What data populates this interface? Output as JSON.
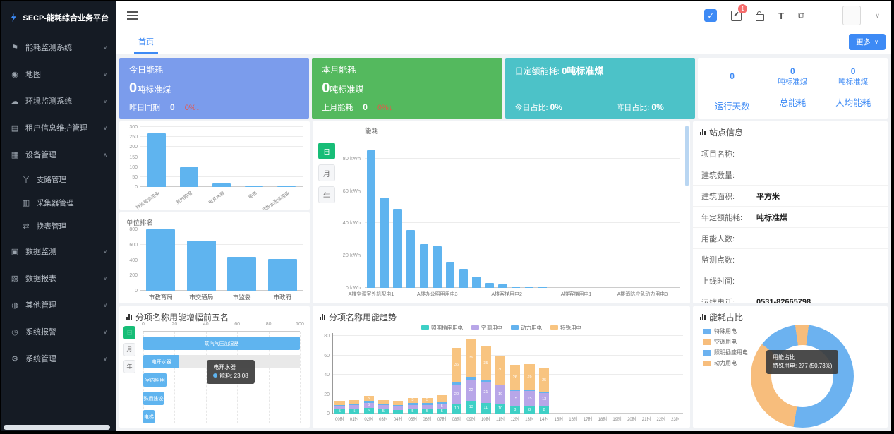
{
  "app": {
    "title": "SECP-能耗综合业务平台"
  },
  "icons": {
    "chevron_down": "∨",
    "chevron_up": "∧",
    "check": "✓",
    "theme": "T",
    "images": "⧉"
  },
  "header": {
    "badge_count": "1"
  },
  "tabs": {
    "home": "首页",
    "more": "更多"
  },
  "sidebar": {
    "items": [
      {
        "label": "能耗监测系统",
        "icon": "flag-icon",
        "chevron": "down"
      },
      {
        "label": "地图",
        "icon": "map-pin-icon",
        "chevron": "down"
      },
      {
        "label": "环境监测系统",
        "icon": "cloud-icon",
        "chevron": "down"
      },
      {
        "label": "租户信息维护管理",
        "icon": "tenant-icon",
        "chevron": "down"
      },
      {
        "label": "设备管理",
        "icon": "device-icon",
        "chevron": "up",
        "children": [
          {
            "label": "支路管理",
            "icon": "branch-icon"
          },
          {
            "label": "采集器管理",
            "icon": "collector-icon"
          },
          {
            "label": "换表管理",
            "icon": "meter-swap-icon"
          }
        ]
      },
      {
        "label": "数据监测",
        "icon": "data-monitor-icon",
        "chevron": "down"
      },
      {
        "label": "数据报表",
        "icon": "report-icon",
        "chevron": "down"
      },
      {
        "label": "其他管理",
        "icon": "other-icon",
        "chevron": "down"
      },
      {
        "label": "系统报警",
        "icon": "alarm-icon",
        "chevron": "down"
      },
      {
        "label": "系统管理",
        "icon": "settings-icon",
        "chevron": "down"
      }
    ]
  },
  "cards": {
    "today": {
      "title": "今日能耗",
      "value": "0",
      "unit": "吨标准煤",
      "compare_label": "昨日同期",
      "compare_value": "0",
      "delta": "0%↓"
    },
    "month": {
      "title": "本月能耗",
      "value": "0",
      "unit": "吨标准煤",
      "compare_label": "上月能耗",
      "compare_value": "0",
      "delta": "0%↓"
    },
    "quota": {
      "title": "日定额能耗:",
      "value": "0吨标准煤",
      "today_label": "今日占比:",
      "today_value": "0%",
      "yesterday_label": "昨日占比:",
      "yesterday_value": "0%"
    },
    "stats": [
      {
        "value": "0",
        "unit": "",
        "label": "运行天数"
      },
      {
        "value": "0",
        "unit": "吨标准煤",
        "label": "总能耗"
      },
      {
        "value": "0",
        "unit": "吨标准煤",
        "label": "人均能耗"
      }
    ]
  },
  "site_info": {
    "title": "站点信息",
    "rows": [
      {
        "label": "项目名称:",
        "value": ""
      },
      {
        "label": "建筑数量:",
        "value": ""
      },
      {
        "label": "建筑面积:",
        "value": "平方米"
      },
      {
        "label": "年定额能耗:",
        "value": "吨标准煤"
      },
      {
        "label": "用能人数:",
        "value": ""
      },
      {
        "label": "监测点数:",
        "value": ""
      },
      {
        "label": "上线时间:",
        "value": ""
      },
      {
        "label": "运维电话:",
        "value": "0531-82665798"
      }
    ]
  },
  "chart_data": [
    {
      "id": "subentry-rank",
      "type": "bar",
      "title": "",
      "categories": [
        "特殊用途设备",
        "室内照明",
        "电开水器",
        "电梯",
        "生活热水洗涤设备"
      ],
      "values": [
        270,
        98,
        17,
        5,
        3
      ],
      "ylim": [
        0,
        300
      ],
      "yticks": [
        0,
        50,
        100,
        150,
        200,
        250,
        300
      ],
      "bar_color": "#5fb4ef"
    },
    {
      "id": "unit-rank",
      "type": "bar",
      "title": "单位排名",
      "categories": [
        "市教育局",
        "市交通局",
        "市监委",
        "市政府"
      ],
      "values": [
        800,
        650,
        440,
        415
      ],
      "ylim": [
        0,
        800
      ],
      "yticks": [
        0,
        200,
        400,
        600,
        800
      ],
      "bar_color": "#5fb4ef"
    },
    {
      "id": "branch-energy",
      "type": "bar",
      "title": "能耗",
      "ylabel_unit": "kWh",
      "period_buttons": [
        "日",
        "月",
        "年"
      ],
      "active_period": "日",
      "values": [
        85,
        56,
        49,
        36,
        27,
        26,
        16,
        12,
        7,
        3,
        2,
        1,
        1,
        1,
        0,
        0,
        0,
        0,
        0,
        0,
        0,
        0,
        0,
        0
      ],
      "x_axis_labels": [
        "A楼空调室外机配电1",
        "A楼办公照明用电3",
        "A楼客梯用电2",
        "A楼客梯用电1",
        "A楼消防应急动力用电3"
      ],
      "ylim": [
        0,
        90
      ],
      "yticks": [
        0,
        20,
        40,
        60,
        80
      ],
      "bar_color": "#5fb4ef"
    },
    {
      "id": "growth-top5",
      "type": "bar",
      "title": "分项名称用能增幅前五名",
      "period_buttons": [
        "日",
        "月",
        "年"
      ],
      "active_period": "日",
      "items": [
        {
          "label": "蒸汽气压加湿器",
          "value": 100,
          "highlight": false
        },
        {
          "label": "电开水器",
          "value": 23.08,
          "highlight": true
        },
        {
          "label": "室内照明",
          "value": 15,
          "highlight": false
        },
        {
          "label": "特殊用途设备",
          "value": 13,
          "highlight": false
        },
        {
          "label": "电梯",
          "value": 4,
          "highlight": false
        }
      ],
      "xlim": [
        0,
        100
      ],
      "xticks": [
        0,
        20,
        40,
        60,
        80,
        100
      ],
      "tooltip": {
        "title": "电开水器",
        "line": "能耗: 23.08"
      },
      "bar_color": "#5fb4ef"
    },
    {
      "id": "subentry-trend",
      "type": "bar",
      "title": "分项名称用能趋势",
      "categories": [
        "00时",
        "01时",
        "02时",
        "03时",
        "04时",
        "05时",
        "06时",
        "07时",
        "08时",
        "09时",
        "10时",
        "11时",
        "12时",
        "13时",
        "14时",
        "15时",
        "16时",
        "17时",
        "18时",
        "19时",
        "20时",
        "21时",
        "22时",
        "23时"
      ],
      "series": [
        {
          "name": "照明插座用电",
          "color": "#3ed0c6",
          "values": [
            5,
            5,
            6,
            5,
            4,
            5,
            5,
            5,
            10,
            13,
            11,
            10,
            8,
            8,
            8,
            0,
            0,
            0,
            0,
            0,
            0,
            0,
            0,
            0
          ]
        },
        {
          "name": "空调用电",
          "color": "#b8a6e8",
          "values": [
            3,
            4,
            5,
            4,
            4,
            4,
            4,
            5,
            20,
            22,
            21,
            19,
            15,
            15,
            13,
            0,
            0,
            0,
            0,
            0,
            0,
            0,
            0,
            0
          ]
        },
        {
          "name": "动力用电",
          "color": "#63b2ee",
          "values": [
            1,
            1,
            2,
            1,
            1,
            2,
            2,
            2,
            2,
            3,
            2,
            1,
            1,
            2,
            1,
            0,
            0,
            0,
            0,
            0,
            0,
            0,
            0,
            0
          ]
        },
        {
          "name": "特殊用电",
          "color": "#f8c480",
          "values": [
            4,
            4,
            5,
            4,
            4,
            5,
            5,
            7,
            36,
            39,
            35,
            30,
            26,
            26,
            25,
            0,
            0,
            0,
            0,
            0,
            0,
            0,
            0,
            0
          ]
        }
      ],
      "ylim": [
        0,
        80
      ],
      "yticks": [
        0,
        20,
        40,
        60,
        80
      ]
    },
    {
      "id": "energy-share",
      "type": "pie",
      "title": "能耗占比",
      "slices": [
        {
          "name": "特殊用电",
          "value": 277,
          "pct": "50.73%",
          "color": "#6cb2f0"
        },
        {
          "name": "空调用电",
          "value": 180,
          "pct": "32.97%",
          "color": "#f7bd7c"
        },
        {
          "name": "照明插座用电",
          "value": 66,
          "pct": "12.09%",
          "color": "#6cb2f0"
        },
        {
          "name": "动力用电",
          "value": 23,
          "pct": "4.21%",
          "color": "#f7bd7c"
        }
      ],
      "visual_order": [
        3,
        0,
        1,
        2
      ],
      "tooltip": {
        "title": "用能占比",
        "line": "特殊用电: 277 (50.73%)"
      }
    }
  ],
  "colors": {
    "accent": "#3d8af5",
    "card_blue": "#7b9cec",
    "card_green": "#54b95e",
    "card_teal": "#4cc2c8",
    "bar_blue": "#5fb4ef",
    "delta_red": "#e8564a"
  }
}
